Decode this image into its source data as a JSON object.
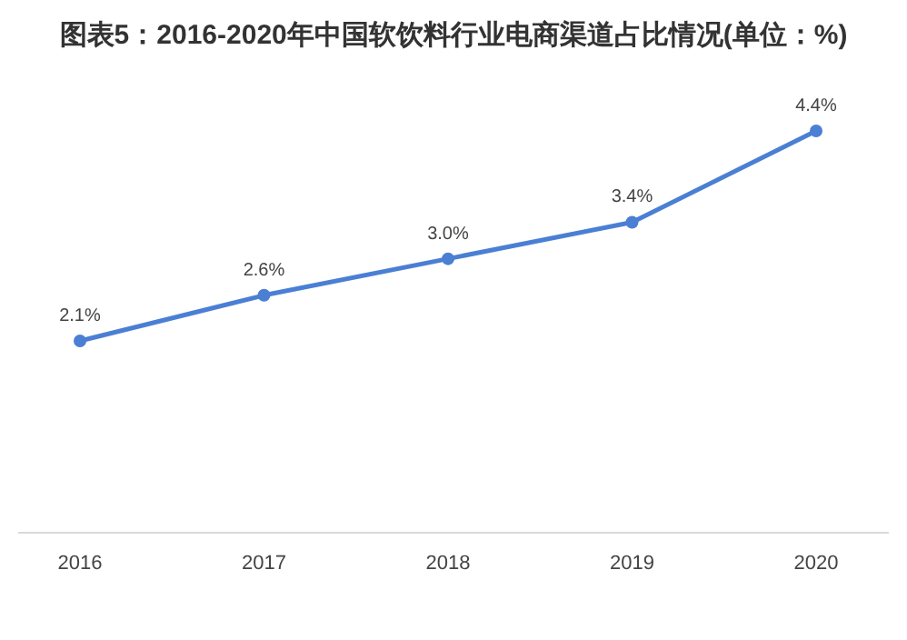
{
  "chart_data": {
    "type": "line",
    "title": "图表5：2016-2020年中国软饮料行业电商渠道占比情况(单位：%)",
    "categories": [
      "2016",
      "2017",
      "2018",
      "2019",
      "2020"
    ],
    "series": [
      {
        "color": "#4a7fd4",
        "values": [
          2.1,
          2.6,
          3.0,
          3.4,
          4.4
        ],
        "value_labels": [
          "2.1%",
          "2.6%",
          "3.0%",
          "3.4%",
          "4.4%"
        ]
      }
    ],
    "marker": "circle",
    "line_style": "solid"
  }
}
